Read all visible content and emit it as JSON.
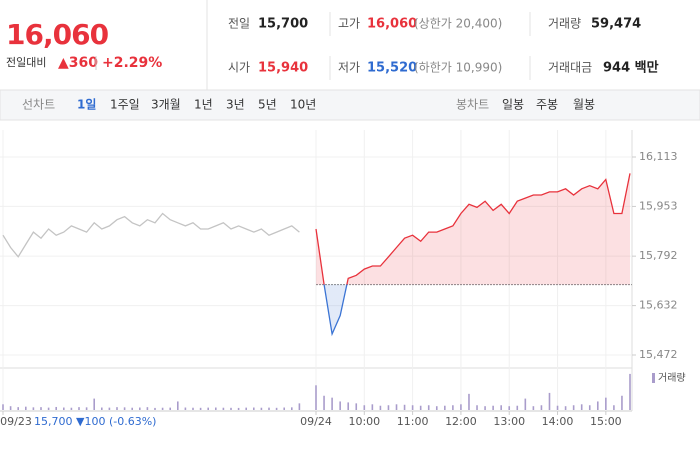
{
  "header": {
    "price": "16,060",
    "change_label": "전일대비",
    "change": "▲360",
    "rate": "+2.29%",
    "stats": [
      {
        "label": "전일",
        "value": "15,700"
      },
      {
        "label": "고가",
        "value": "16,060",
        "note": "(상한가 20,400)"
      },
      {
        "label": "거래량",
        "value": "59,474"
      },
      {
        "label": "시가",
        "value": "15,940"
      },
      {
        "label": "저가",
        "value": "15,520",
        "note": "(하한가 10,990)"
      },
      {
        "label": "거래대금",
        "value": "944 백만"
      }
    ]
  },
  "tabs": {
    "line_label": "선차트",
    "line_periods": [
      "1일",
      "1주일",
      "3개월",
      "1년",
      "3년",
      "5년",
      "10년"
    ],
    "candle_label": "봉차트",
    "candle_periods": [
      "일봉",
      "주봉",
      "월봉"
    ]
  },
  "chart_data": {
    "type": "line",
    "categories": [
      "09/23",
      null,
      null,
      null,
      null,
      null,
      null,
      null,
      null,
      null,
      null,
      null,
      null,
      null,
      null,
      null,
      null,
      null,
      null,
      null,
      null,
      null,
      null,
      null,
      null,
      null,
      null,
      null,
      null,
      null,
      null,
      null,
      null,
      null,
      null,
      null,
      null,
      null,
      null,
      null,
      "09/24",
      null,
      null,
      null,
      null,
      null,
      "10:00",
      null,
      null,
      null,
      null,
      null,
      "11:00",
      null,
      null,
      null,
      null,
      null,
      "12:00",
      null,
      null,
      null,
      null,
      null,
      "13:00",
      null,
      null,
      null,
      null,
      null,
      "14:00",
      null,
      null,
      null,
      null,
      null,
      "15:00",
      null,
      null,
      null
    ],
    "series": [
      {
        "color": "#c4c4c4",
        "values": [
          15860,
          15820,
          15790,
          15830,
          15870,
          15850,
          15880,
          15860,
          15870,
          15890,
          15880,
          15870,
          15900,
          15880,
          15890,
          15910,
          15920,
          15900,
          15890,
          15910,
          15900,
          15930,
          15910,
          15900,
          15890,
          15900,
          15880,
          15880,
          15890,
          15900,
          15880,
          15890,
          15880,
          15870,
          15880,
          15860,
          15870,
          15880,
          15890,
          15870,
          null,
          null,
          null,
          null,
          null,
          null,
          null,
          null,
          null,
          null,
          null,
          null,
          null,
          null,
          null,
          null,
          null,
          null,
          null,
          null,
          null,
          null,
          null,
          null,
          null,
          null,
          null,
          null,
          null,
          null,
          null,
          null,
          null,
          null,
          null,
          null,
          null,
          null,
          null,
          null
        ]
      },
      {
        "color": "#e8323c",
        "color_below": "#3b74d4",
        "values": [
          null,
          null,
          null,
          null,
          null,
          null,
          null,
          null,
          null,
          null,
          null,
          null,
          null,
          null,
          null,
          null,
          null,
          null,
          null,
          null,
          null,
          null,
          null,
          null,
          null,
          null,
          null,
          null,
          null,
          null,
          null,
          null,
          null,
          null,
          null,
          null,
          null,
          null,
          null,
          null,
          15880,
          15700,
          15540,
          15600,
          15720,
          15730,
          15750,
          15760,
          15760,
          15790,
          15820,
          15850,
          15860,
          15840,
          15870,
          15870,
          15880,
          15890,
          15930,
          15960,
          15950,
          15970,
          15940,
          15960,
          15930,
          15970,
          15980,
          15990,
          15990,
          16000,
          16000,
          16010,
          15990,
          16010,
          16020,
          16010,
          16040,
          15930,
          15930,
          16060
        ]
      },
      {
        "name": "거래량",
        "type": "bar",
        "axis": "y2",
        "color": "#a99ccb",
        "values": [
          600,
          400,
          300,
          350,
          280,
          300,
          250,
          320,
          260,
          240,
          300,
          280,
          1200,
          260,
          250,
          300,
          280,
          240,
          260,
          300,
          220,
          240,
          250,
          900,
          260,
          240,
          230,
          250,
          260,
          240,
          230,
          220,
          250,
          260,
          240,
          250,
          230,
          260,
          280,
          700,
          2600,
          1500,
          1300,
          900,
          800,
          700,
          500,
          600,
          450,
          500,
          600,
          550,
          500,
          450,
          500,
          400,
          450,
          500,
          600,
          1700,
          500,
          400,
          450,
          500,
          400,
          450,
          1200,
          400,
          500,
          1800,
          450,
          400,
          500,
          600,
          500,
          900,
          1300,
          500,
          1500,
          3800
        ]
      }
    ],
    "baseline": 15700,
    "ylim": [
      15440,
      16180
    ],
    "yticks": [
      {
        "value": 16113,
        "label": "16,113"
      },
      {
        "value": 15953,
        "label": "15,953"
      },
      {
        "value": 15792,
        "label": "15,792"
      },
      {
        "value": 15632,
        "label": "15,632"
      },
      {
        "value": 15472,
        "label": "15,472"
      }
    ],
    "y2lim": [
      0,
      4000
    ],
    "grid": true,
    "annotation": "15,700 ▼100 (-0.63%)"
  }
}
